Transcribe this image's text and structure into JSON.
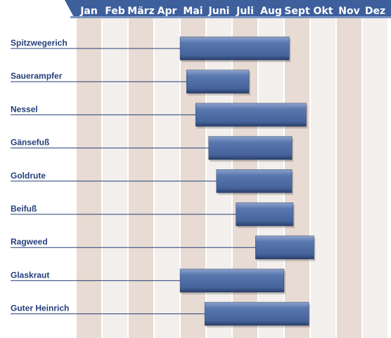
{
  "chart_data": {
    "type": "bar",
    "subtype": "timeline",
    "months": [
      "Jan",
      "Feb",
      "März",
      "Apr",
      "Mai",
      "Juni",
      "Juli",
      "Aug",
      "Sept",
      "Okt",
      "Nov",
      "Dez"
    ],
    "series": [
      {
        "label": "Spitzwegerich",
        "start": 5.0,
        "end": 9.2
      },
      {
        "label": "Sauerampfer",
        "start": 5.25,
        "end": 7.65
      },
      {
        "label": "Nessel",
        "start": 5.6,
        "end": 9.85
      },
      {
        "label": "Gänsefuß",
        "start": 6.1,
        "end": 9.3
      },
      {
        "label": "Goldrute",
        "start": 6.4,
        "end": 9.3
      },
      {
        "label": "Beifuß",
        "start": 7.15,
        "end": 9.35
      },
      {
        "label": "Ragweed",
        "start": 7.9,
        "end": 10.15
      },
      {
        "label": "Glaskraut",
        "start": 5.0,
        "end": 9.0
      },
      {
        "label": "Guter Heinrich",
        "start": 5.95,
        "end": 9.95
      }
    ],
    "xlim": [
      1,
      13
    ],
    "grid": true,
    "colors": {
      "header": "#3d5f9c",
      "header_accent": "#7a95c4",
      "stripe_dark": "#e8dbd3",
      "stripe_light": "#f3efec",
      "bar": "#4f6ba3",
      "bar_edge": "#2a3f69",
      "label": "#243f7a",
      "line": "#243f7a"
    }
  }
}
